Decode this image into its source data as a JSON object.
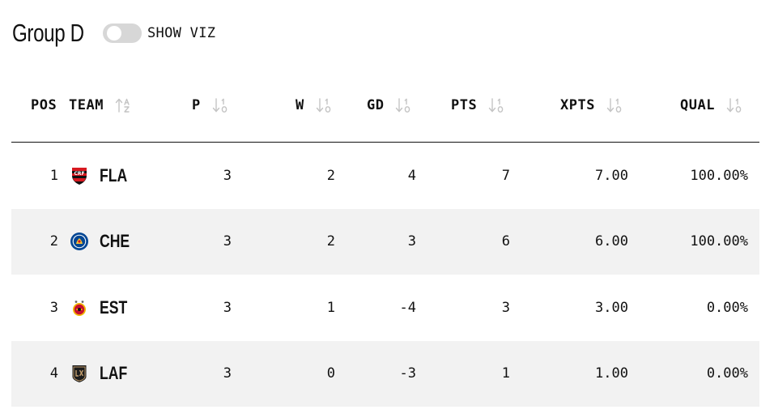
{
  "group": {
    "title": "Group D"
  },
  "toggle": {
    "label": "SHOW VIZ",
    "on": false
  },
  "columns": {
    "pos": "POS",
    "team": "TEAM",
    "p": "P",
    "w": "W",
    "gd": "GD",
    "pts": "PTS",
    "xpts": "XPTS",
    "qual": "QUAL"
  },
  "rows": [
    {
      "pos": "1",
      "team": "FLA",
      "logo": "flamengo-crest-icon",
      "p": "3",
      "w": "2",
      "gd": "4",
      "pts": "7",
      "xpts": "7.00",
      "qual": "100.00%"
    },
    {
      "pos": "2",
      "team": "CHE",
      "logo": "chelsea-crest-icon",
      "p": "3",
      "w": "2",
      "gd": "3",
      "pts": "6",
      "xpts": "6.00",
      "qual": "100.00%"
    },
    {
      "pos": "3",
      "team": "EST",
      "logo": "esperance-crest-icon",
      "p": "3",
      "w": "1",
      "gd": "-4",
      "pts": "3",
      "xpts": "3.00",
      "qual": "0.00%"
    },
    {
      "pos": "4",
      "team": "LAF",
      "logo": "lafc-crest-icon",
      "p": "3",
      "w": "0",
      "gd": "-3",
      "pts": "1",
      "xpts": "1.00",
      "qual": "0.00%"
    }
  ],
  "colors": {
    "flamengo_red": "#d71920",
    "flamengo_black": "#111111",
    "chelsea_blue": "#034694",
    "esperance_red": "#c8102e",
    "esperance_yellow": "#f2b705",
    "lafc_black": "#1b1b1b",
    "lafc_gold": "#c39e6d",
    "row_alt": "#f2f2f2",
    "sort_icon": "#c4c4c4"
  }
}
